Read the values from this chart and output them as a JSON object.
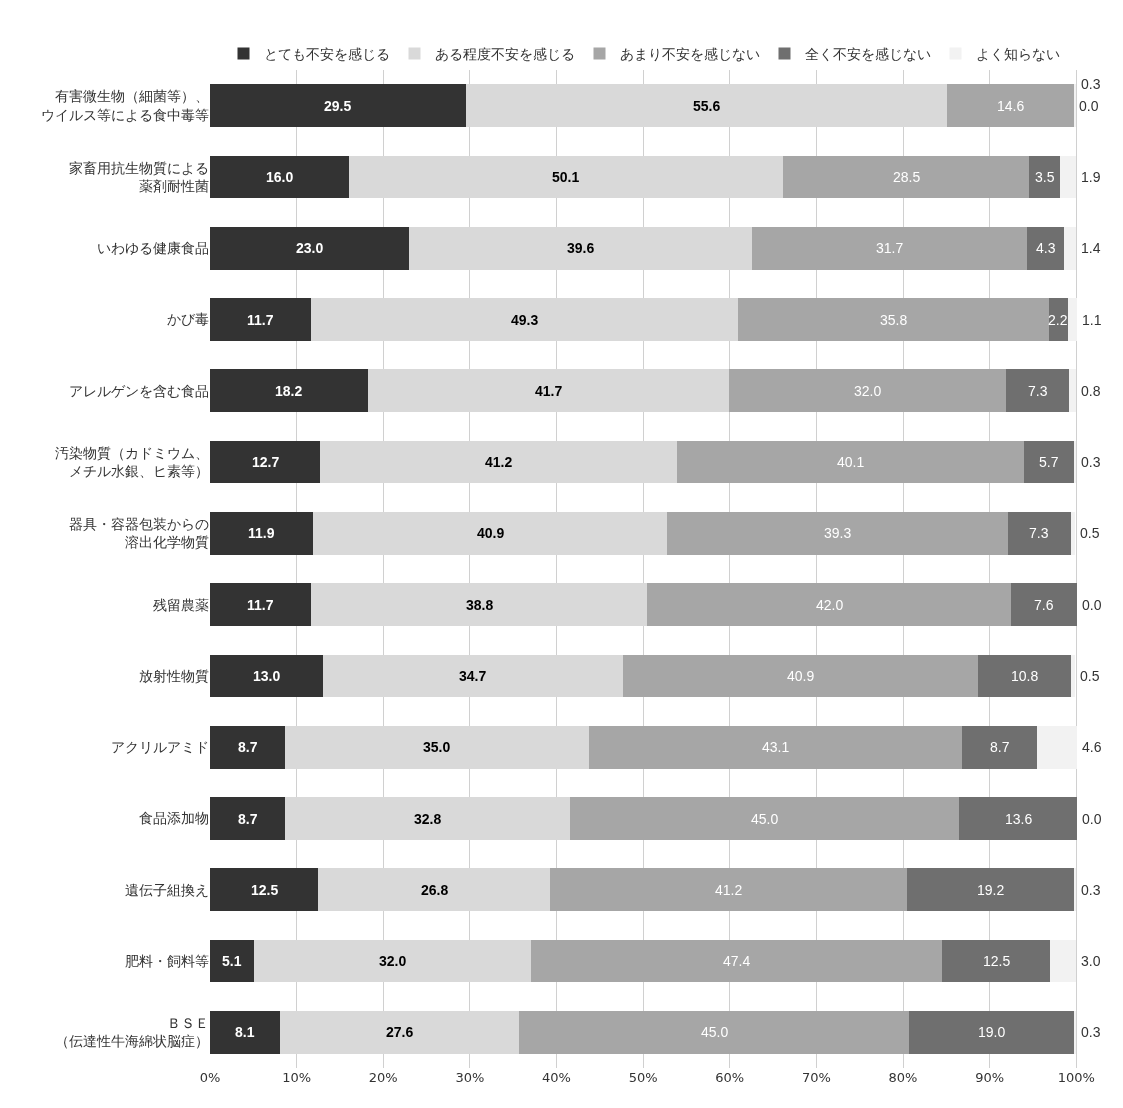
{
  "chart_data": {
    "type": "bar",
    "orientation": "horizontal",
    "stacked": true,
    "grid": "x",
    "legend": "top",
    "categories": [
      "有害微生物（細菌等）、ウイルス等による食中毒等",
      "家畜用抗生物質による薬剤耐性菌",
      "いわゆる健康食品",
      "かび毒",
      "アレルゲンを含む食品",
      "汚染物質（カドミウム、メチル水銀、ヒ素等）",
      "器具・容器包装からの溶出化学物質",
      "残留農薬",
      "放射性物質",
      "アクリルアミド",
      "食品添加物",
      "遺伝子組換え",
      "肥料・飼料等",
      "ＢＳＥ（伝達性牛海綿状脳症）"
    ],
    "series": [
      {
        "name": "とても不安を感じる",
        "color": "#333333",
        "values": [
          29.5,
          16.0,
          23.0,
          11.7,
          18.2,
          12.7,
          11.9,
          11.7,
          13.0,
          8.7,
          8.7,
          12.5,
          5.1,
          8.1
        ],
        "value_labels": [
          "29.5",
          "16.0",
          "23.0",
          "11.7",
          "18.2",
          "12.7",
          "11.9",
          "11.7",
          "13.0",
          "8.7",
          "8.7",
          "12.5",
          "5.1",
          "8.1"
        ]
      },
      {
        "name": "ある程度不安を感じる",
        "color": "#d9d9d9",
        "values": [
          55.6,
          50.1,
          39.6,
          49.3,
          41.7,
          41.2,
          40.9,
          38.8,
          34.7,
          35.0,
          32.8,
          26.8,
          32.0,
          27.6
        ],
        "value_labels": [
          "55.6",
          "50.1",
          "39.6",
          "49.3",
          "41.7",
          "41.2",
          "40.9",
          "38.8",
          "34.7",
          "35.0",
          "32.8",
          "26.8",
          "32.0",
          "27.6"
        ]
      },
      {
        "name": "あまり不安を感じない",
        "color": "#a6a6a6",
        "values": [
          14.6,
          28.5,
          31.7,
          35.8,
          32.0,
          40.1,
          39.3,
          42.0,
          40.9,
          43.1,
          45.0,
          41.2,
          47.4,
          45.0
        ],
        "value_labels": [
          "14.6",
          "28.5",
          "31.7",
          "35.8",
          "32.0",
          "40.1",
          "39.3",
          "42.0",
          "40.9",
          "43.1",
          "45.0",
          "41.2",
          "47.4",
          "45.0"
        ]
      },
      {
        "name": "全く不安を感じない",
        "color": "#6f6f6f",
        "values": [
          0.0,
          3.5,
          4.3,
          2.2,
          7.3,
          5.7,
          7.3,
          7.6,
          10.8,
          8.7,
          13.6,
          19.2,
          12.5,
          19.0
        ],
        "value_labels": [
          "0.0",
          "3.5",
          "4.3",
          "2.2",
          "7.3",
          "5.7",
          "7.3",
          "7.6",
          "10.8",
          "8.7",
          "13.6",
          "19.2",
          "12.5",
          "19.0"
        ]
      },
      {
        "name": "よく知らない",
        "color": "#f2f2f2",
        "values": [
          0.3,
          1.9,
          1.4,
          1.1,
          0.8,
          0.3,
          0.5,
          0.0,
          0.5,
          4.6,
          0.0,
          0.3,
          3.0,
          0.3
        ],
        "value_labels": [
          "0.3",
          "1.9",
          "1.4",
          "1.1",
          "0.8",
          "0.3",
          "0.5",
          "0.0",
          "0.5",
          "4.6",
          "0.0",
          "0.3",
          "3.0",
          "0.3"
        ]
      }
    ],
    "xlim": [
      0,
      100.2
    ],
    "xticks": [
      {
        "value": 0,
        "label": "0%"
      },
      {
        "value": 10,
        "label": "10%"
      },
      {
        "value": 20,
        "label": "20%"
      },
      {
        "value": 30,
        "label": "30%"
      },
      {
        "value": 40,
        "label": "40%"
      },
      {
        "value": 50,
        "label": "50%"
      },
      {
        "value": 60,
        "label": "60%"
      },
      {
        "value": 70,
        "label": "70%"
      },
      {
        "value": 80,
        "label": "80%"
      },
      {
        "value": 90,
        "label": "90%"
      },
      {
        "value": 100,
        "label": "100%"
      }
    ]
  }
}
